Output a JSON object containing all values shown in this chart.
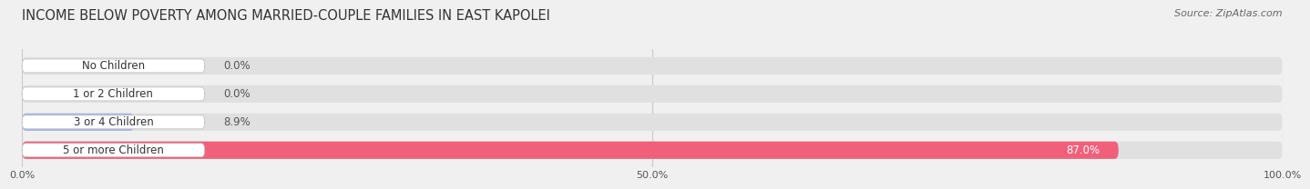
{
  "title": "INCOME BELOW POVERTY AMONG MARRIED-COUPLE FAMILIES IN EAST KAPOLEI",
  "source": "Source: ZipAtlas.com",
  "categories": [
    "No Children",
    "1 or 2 Children",
    "3 or 4 Children",
    "5 or more Children"
  ],
  "values": [
    0.0,
    0.0,
    8.9,
    87.0
  ],
  "bar_colors": [
    "#c9a8d4",
    "#5ec8c0",
    "#a8b4e8",
    "#f0607a"
  ],
  "bg_color": "#f0f0f0",
  "bar_bg_color": "#e0e0e0",
  "xlim": [
    0,
    100
  ],
  "xtick_labels": [
    "0.0%",
    "50.0%",
    "100.0%"
  ],
  "title_fontsize": 10.5,
  "source_fontsize": 8,
  "label_fontsize": 8.5,
  "value_fontsize": 8.5,
  "tick_fontsize": 8
}
